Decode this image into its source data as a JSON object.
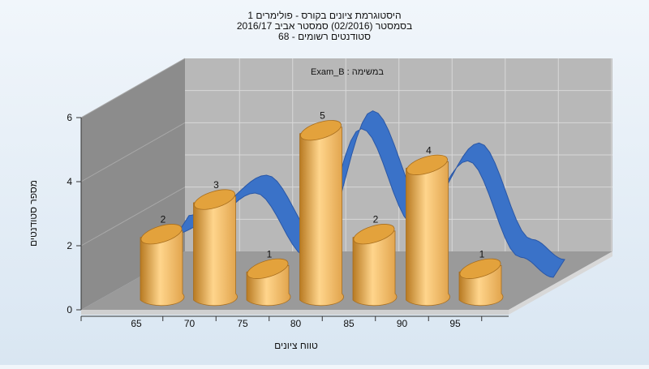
{
  "title_lines": [
    "היסטוגרמת ציונים בקורס - פולימרים 1",
    "בסמסטר (02/2016) סמסטר אביב 2016/17",
    "סטודנטים רשומים - 68"
  ],
  "chart_data": {
    "type": "bar",
    "subtitle": "Exam_B : במשימה",
    "xlabel": "טווח ציונים",
    "ylabel": "מספר סטודנטים",
    "categories": [
      "65",
      "70",
      "75",
      "80",
      "85",
      "90",
      "95"
    ],
    "values": [
      2,
      3,
      1,
      5,
      2,
      4,
      1
    ],
    "ylim": [
      0,
      6
    ],
    "yticks": [
      0,
      2,
      4,
      6
    ],
    "grid": true,
    "colors": {
      "bar": "#e0a24a",
      "bar_light": "#ffd58c",
      "bar_dark": "#b87a22",
      "curve": "#3a72c8",
      "curve_dark": "#2a57a6",
      "back_wall": "#b8b8b8",
      "side_wall": "#8c8c8c",
      "floor": "#9a9a9a"
    }
  }
}
